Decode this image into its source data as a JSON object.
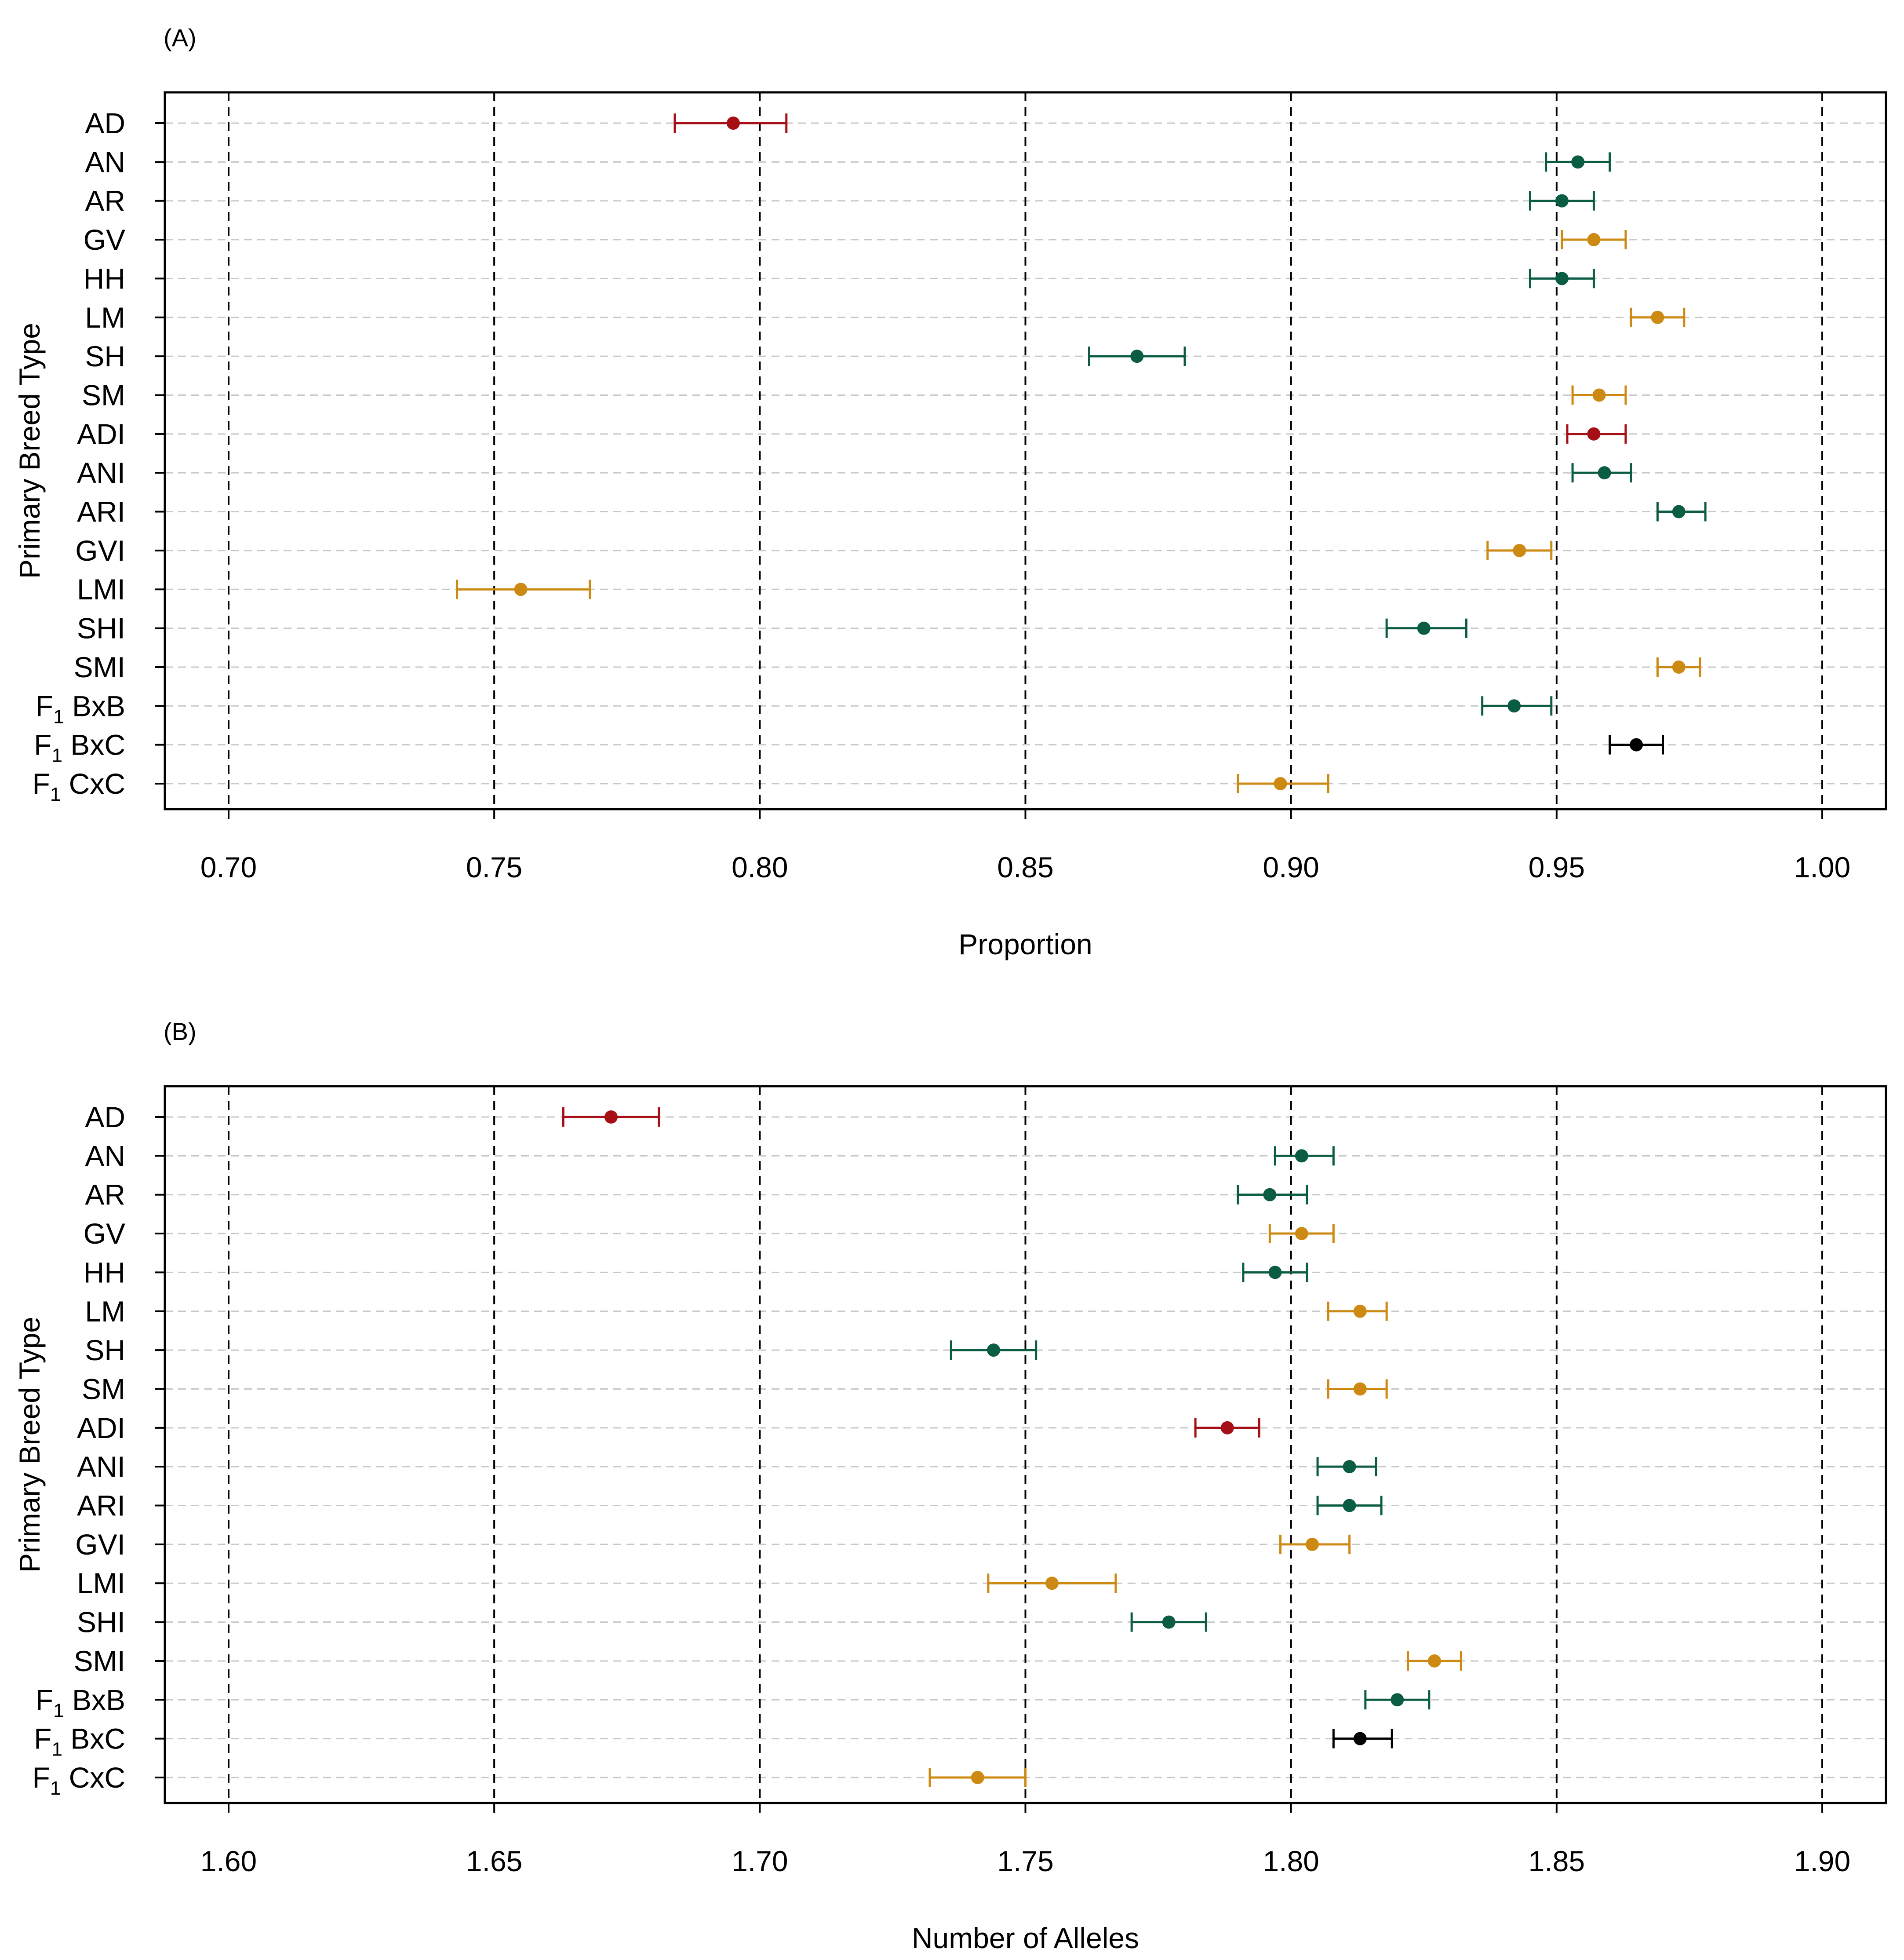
{
  "colors": {
    "british": "#a50f15",
    "continental_green": "#0b5c45",
    "continental_gold": "#cc8a12",
    "crossbred": "#000000",
    "gridline": "#c8c8c8"
  },
  "chart_data": [
    {
      "type": "errorbar",
      "panel_label": "(A)",
      "xlabel": "Proportion",
      "ylabel": "Primary Breed Type",
      "xlim": [
        0.688,
        1.012
      ],
      "xticks": [
        "0.70",
        "0.75",
        "0.80",
        "0.85",
        "0.90",
        "0.95",
        "1.00"
      ],
      "xtick_values": [
        0.7,
        0.75,
        0.8,
        0.85,
        0.9,
        0.95,
        1.0
      ],
      "points": [
        {
          "label": "AD",
          "value": 0.795,
          "lower": 0.784,
          "upper": 0.805,
          "color": "#a50f15"
        },
        {
          "label": "AN",
          "value": 0.954,
          "lower": 0.948,
          "upper": 0.96,
          "color": "#0b5c45"
        },
        {
          "label": "AR",
          "value": 0.951,
          "lower": 0.945,
          "upper": 0.957,
          "color": "#0b5c45"
        },
        {
          "label": "GV",
          "value": 0.957,
          "lower": 0.951,
          "upper": 0.963,
          "color": "#cc8a12"
        },
        {
          "label": "HH",
          "value": 0.951,
          "lower": 0.945,
          "upper": 0.957,
          "color": "#0b5c45"
        },
        {
          "label": "LM",
          "value": 0.969,
          "lower": 0.964,
          "upper": 0.974,
          "color": "#cc8a12"
        },
        {
          "label": "SH",
          "value": 0.871,
          "lower": 0.862,
          "upper": 0.88,
          "color": "#0b5c45"
        },
        {
          "label": "SM",
          "value": 0.958,
          "lower": 0.953,
          "upper": 0.963,
          "color": "#cc8a12"
        },
        {
          "label": "ADI",
          "value": 0.957,
          "lower": 0.952,
          "upper": 0.963,
          "color": "#a50f15"
        },
        {
          "label": "ANI",
          "value": 0.959,
          "lower": 0.953,
          "upper": 0.964,
          "color": "#0b5c45"
        },
        {
          "label": "ARI",
          "value": 0.973,
          "lower": 0.969,
          "upper": 0.978,
          "color": "#0b5c45"
        },
        {
          "label": "GVI",
          "value": 0.943,
          "lower": 0.937,
          "upper": 0.949,
          "color": "#cc8a12"
        },
        {
          "label": "LMI",
          "value": 0.755,
          "lower": 0.743,
          "upper": 0.768,
          "color": "#cc8a12"
        },
        {
          "label": "SHI",
          "value": 0.925,
          "lower": 0.918,
          "upper": 0.933,
          "color": "#0b5c45"
        },
        {
          "label": "SMI",
          "value": 0.973,
          "lower": 0.969,
          "upper": 0.977,
          "color": "#cc8a12"
        },
        {
          "label": "F1 BxB",
          "main": "F",
          "sub": "1",
          "rest": " BxB",
          "value": 0.942,
          "lower": 0.936,
          "upper": 0.949,
          "color": "#0b5c45"
        },
        {
          "label": "F1 BxC",
          "main": "F",
          "sub": "1",
          "rest": " BxC",
          "value": 0.965,
          "lower": 0.96,
          "upper": 0.97,
          "color": "#000000"
        },
        {
          "label": "F1 CxC",
          "main": "F",
          "sub": "1",
          "rest": " CxC",
          "value": 0.898,
          "lower": 0.89,
          "upper": 0.907,
          "color": "#cc8a12"
        }
      ]
    },
    {
      "type": "errorbar",
      "panel_label": "(B)",
      "xlabel": "Number of Alleles",
      "ylabel": "Primary Breed Type",
      "xlim": [
        1.588,
        1.912
      ],
      "xticks": [
        "1.60",
        "1.65",
        "1.70",
        "1.75",
        "1.80",
        "1.85",
        "1.90"
      ],
      "xtick_values": [
        1.6,
        1.65,
        1.7,
        1.75,
        1.8,
        1.85,
        1.9
      ],
      "points": [
        {
          "label": "AD",
          "value": 1.672,
          "lower": 1.663,
          "upper": 1.681,
          "color": "#a50f15"
        },
        {
          "label": "AN",
          "value": 1.802,
          "lower": 1.797,
          "upper": 1.808,
          "color": "#0b5c45"
        },
        {
          "label": "AR",
          "value": 1.796,
          "lower": 1.79,
          "upper": 1.803,
          "color": "#0b5c45"
        },
        {
          "label": "GV",
          "value": 1.802,
          "lower": 1.796,
          "upper": 1.808,
          "color": "#cc8a12"
        },
        {
          "label": "HH",
          "value": 1.797,
          "lower": 1.791,
          "upper": 1.803,
          "color": "#0b5c45"
        },
        {
          "label": "LM",
          "value": 1.813,
          "lower": 1.807,
          "upper": 1.818,
          "color": "#cc8a12"
        },
        {
          "label": "SH",
          "value": 1.744,
          "lower": 1.736,
          "upper": 1.752,
          "color": "#0b5c45"
        },
        {
          "label": "SM",
          "value": 1.813,
          "lower": 1.807,
          "upper": 1.818,
          "color": "#cc8a12"
        },
        {
          "label": "ADI",
          "value": 1.788,
          "lower": 1.782,
          "upper": 1.794,
          "color": "#a50f15"
        },
        {
          "label": "ANI",
          "value": 1.811,
          "lower": 1.805,
          "upper": 1.816,
          "color": "#0b5c45"
        },
        {
          "label": "ARI",
          "value": 1.811,
          "lower": 1.805,
          "upper": 1.817,
          "color": "#0b5c45"
        },
        {
          "label": "GVI",
          "value": 1.804,
          "lower": 1.798,
          "upper": 1.811,
          "color": "#cc8a12"
        },
        {
          "label": "LMI",
          "value": 1.755,
          "lower": 1.743,
          "upper": 1.767,
          "color": "#cc8a12"
        },
        {
          "label": "SHI",
          "value": 1.777,
          "lower": 1.77,
          "upper": 1.784,
          "color": "#0b5c45"
        },
        {
          "label": "SMI",
          "value": 1.827,
          "lower": 1.822,
          "upper": 1.832,
          "color": "#cc8a12"
        },
        {
          "label": "F1 BxB",
          "main": "F",
          "sub": "1",
          "rest": " BxB",
          "value": 1.82,
          "lower": 1.814,
          "upper": 1.826,
          "color": "#0b5c45"
        },
        {
          "label": "F1 BxC",
          "main": "F",
          "sub": "1",
          "rest": " BxC",
          "value": 1.813,
          "lower": 1.808,
          "upper": 1.819,
          "color": "#000000"
        },
        {
          "label": "F1 CxC",
          "main": "F",
          "sub": "1",
          "rest": " CxC",
          "value": 1.741,
          "lower": 1.732,
          "upper": 1.75,
          "color": "#cc8a12"
        }
      ]
    }
  ]
}
